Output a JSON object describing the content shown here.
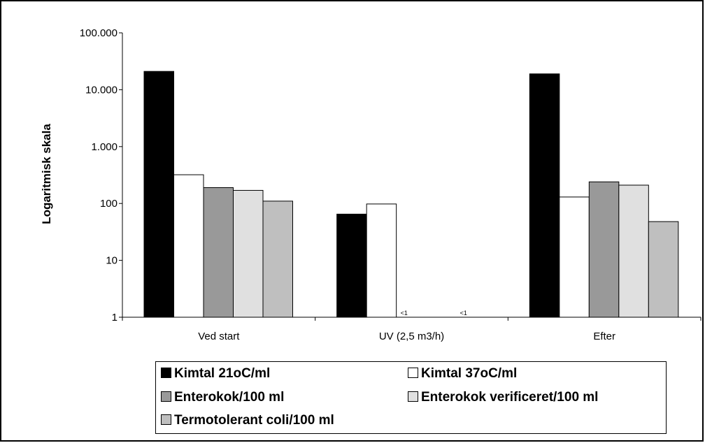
{
  "chart_data": {
    "type": "bar",
    "title": "",
    "xlabel": "",
    "ylabel": "Logaritmisk skala",
    "yscale": "log",
    "ylim": [
      1,
      100000
    ],
    "yticks": [
      {
        "value": 1,
        "label": "1"
      },
      {
        "value": 10,
        "label": "10"
      },
      {
        "value": 100,
        "label": "100"
      },
      {
        "value": 1000,
        "label": "1.000"
      },
      {
        "value": 10000,
        "label": "10.000"
      },
      {
        "value": 100000,
        "label": "100.000"
      }
    ],
    "categories": [
      "Ved start",
      "UV (2,5 m3/h)",
      "Efter"
    ],
    "series": [
      {
        "name": "Kimtal 21oC/ml",
        "color": "#000000",
        "values": [
          21000,
          65,
          19000
        ]
      },
      {
        "name": "Kimtal 37oC/ml",
        "color": "#ffffff",
        "values": [
          320,
          98,
          130
        ]
      },
      {
        "name": "Enterokok/100 ml",
        "color": "#999999",
        "values": [
          190,
          null,
          240
        ]
      },
      {
        "name": "Enterokok verificeret/100 ml",
        "color": "#e0e0e0",
        "values": [
          170,
          null,
          210
        ]
      },
      {
        "name": "Termotolerant coli/100 ml",
        "color": "#bfbfbf",
        "values": [
          110,
          null,
          48
        ]
      }
    ],
    "annotations": [
      {
        "category": "UV (2,5 m3/h)",
        "series": "Enterokok/100 ml",
        "text": "<1"
      },
      {
        "category": "UV (2,5 m3/h)",
        "series": "Termotolerant coli/100 ml",
        "text": "<1"
      }
    ],
    "legend": "bottom",
    "grid": false
  }
}
